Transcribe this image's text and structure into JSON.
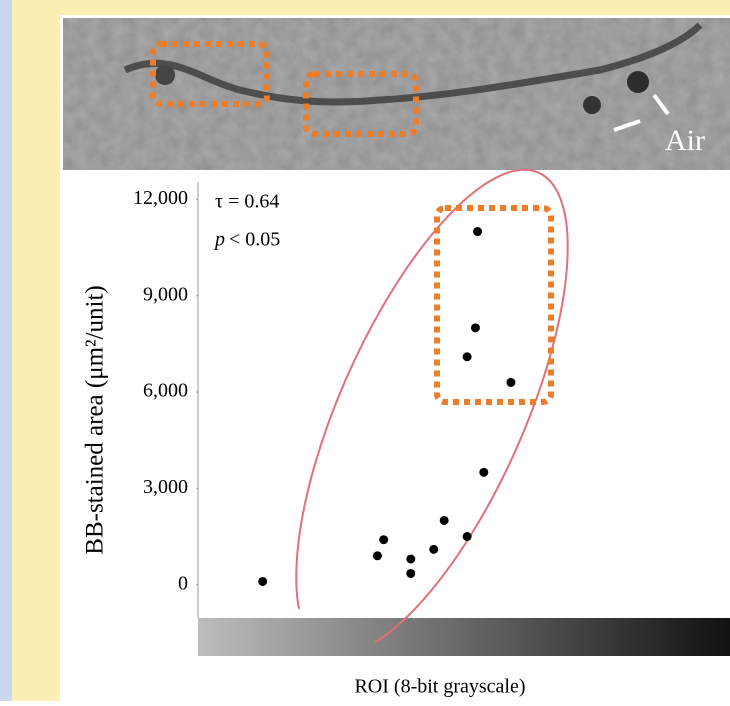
{
  "chart_data": {
    "type": "scatter",
    "image_label": "Air",
    "annotations": [
      "τ = 0.64",
      "p",
      "< 0.05"
    ],
    "xlabel": "ROI (8-bit grayscale)",
    "ylabel": "BB-stained area (μm²/unit)",
    "x": [
      31,
      86,
      89,
      102,
      102,
      113,
      118,
      129,
      137,
      129,
      133,
      134,
      150
    ],
    "values": [
      100,
      900,
      1400,
      800,
      350,
      1100,
      2000,
      1500,
      3500,
      7100,
      8000,
      11000,
      6300
    ],
    "color": "#000000",
    "xlim": [
      0,
      255
    ],
    "ylim": [
      -1100,
      12450
    ],
    "yticks": [
      0,
      {
        "value": 3000,
        "label": "3,000"
      },
      {
        "value": 6000,
        "label": "6,000"
      },
      {
        "value": 9000,
        "label": "9,000"
      },
      {
        "value": 12000,
        "label": "12,000"
      }
    ]
  }
}
